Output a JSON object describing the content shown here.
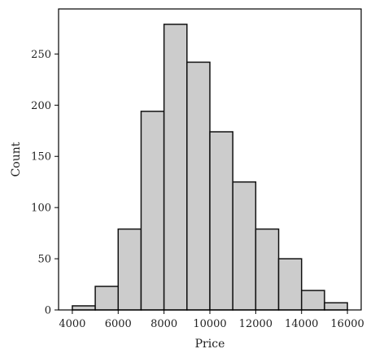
{
  "chart_data": {
    "type": "bar",
    "title": "",
    "xlabel": "Price",
    "ylabel": "Count",
    "bin_edges": [
      4000,
      5000,
      6000,
      7000,
      8000,
      9000,
      10000,
      11000,
      12000,
      13000,
      14000,
      15000,
      16000
    ],
    "values": [
      4,
      23,
      79,
      194,
      279,
      242,
      174,
      125,
      79,
      50,
      19,
      7
    ],
    "xlim": [
      3400,
      16600
    ],
    "ylim": [
      0,
      294
    ],
    "xticks": [
      4000,
      6000,
      8000,
      10000,
      12000,
      14000,
      16000
    ],
    "yticks": [
      0,
      50,
      100,
      150,
      200,
      250
    ],
    "grid": false,
    "colors": {
      "bar_fill": "#cccccc",
      "bar_edge": "#111111",
      "axis": "#000000"
    }
  }
}
